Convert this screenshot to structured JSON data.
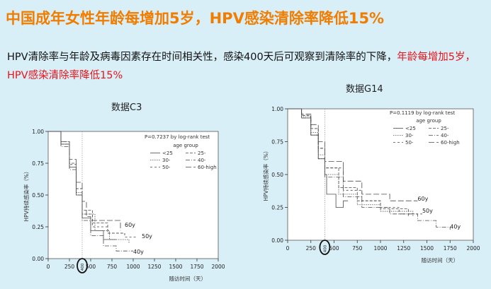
{
  "title": "中国成年女性年龄每增加5岁，HPV感染清除率降低15%",
  "paragraph": {
    "text": "HPV清除率与年龄及病毒因素存在时间相关性，感染400天后可观察到清除率的下降，",
    "highlight": "年龄每增加5岁，HPV感染清除率降低15%"
  },
  "colors": {
    "title": "#f07d00",
    "highlight": "#e8141a",
    "background": "#d9eff8",
    "plot_background": "#ffffff"
  },
  "chart_data": [
    {
      "type": "line",
      "title": "数据C3",
      "annotation": "P=0.7237 by log-rank test",
      "xlabel": "随访时间（天）",
      "ylabel": "HPV持续感染率（%）",
      "xlim": [
        0,
        2000
      ],
      "ylim": [
        0,
        1
      ],
      "xticks": [
        0,
        250,
        500,
        750,
        1000,
        1250,
        1500,
        1750,
        2000
      ],
      "yticks": [
        0.0,
        0.25,
        0.5,
        0.75,
        1.0
      ],
      "x_tick_labels": [
        "0",
        "250",
        "500",
        "750",
        "1000",
        "1250",
        "1500",
        "1750",
        "2000"
      ],
      "y_tick_labels": [
        "0.00",
        "0.25",
        "0.50",
        "0.75",
        "1.00"
      ],
      "marker_x": 400,
      "marker_label": "400",
      "legend": {
        "title": "age group",
        "position": "top-right",
        "entries": [
          "<25",
          "25-",
          "30-",
          "40-",
          "50-",
          "60-high"
        ]
      },
      "end_labels": [
        {
          "text": "60y",
          "x": 900,
          "y": 0.25
        },
        {
          "text": "50y",
          "x": 1100,
          "y": 0.16
        },
        {
          "text": "40y",
          "x": 1000,
          "y": 0.04
        }
      ],
      "series": [
        {
          "name": "<25",
          "dash": "",
          "x": [
            0,
            150,
            250,
            330,
            400,
            500,
            650,
            800
          ],
          "y": [
            1.0,
            0.9,
            0.72,
            0.5,
            0.32,
            0.22,
            0.15,
            0.15
          ]
        },
        {
          "name": "25-",
          "dash": "4,2",
          "x": [
            0,
            150,
            250,
            330,
            400,
            520,
            700,
            900
          ],
          "y": [
            1.0,
            0.92,
            0.75,
            0.55,
            0.38,
            0.28,
            0.2,
            0.19
          ]
        },
        {
          "name": "30-",
          "dash": "1.5,1.5",
          "x": [
            0,
            150,
            250,
            330,
            400,
            550,
            720,
            950
          ],
          "y": [
            1.0,
            0.9,
            0.72,
            0.52,
            0.35,
            0.22,
            0.15,
            0.12
          ]
        },
        {
          "name": "40-",
          "dash": "6,2,1,2",
          "x": [
            0,
            150,
            250,
            330,
            400,
            500,
            650,
            800,
            1000
          ],
          "y": [
            1.0,
            0.88,
            0.7,
            0.5,
            0.3,
            0.18,
            0.1,
            0.06,
            0.06
          ]
        },
        {
          "name": "50-",
          "dash": "3,3",
          "x": [
            0,
            150,
            250,
            330,
            400,
            520,
            700,
            900,
            1050
          ],
          "y": [
            1.0,
            0.9,
            0.74,
            0.55,
            0.35,
            0.25,
            0.2,
            0.17,
            0.17
          ]
        },
        {
          "name": "60-high",
          "dash": "8,3",
          "x": [
            0,
            150,
            250,
            330,
            400,
            450,
            500,
            800,
            850
          ],
          "y": [
            1.0,
            0.92,
            0.78,
            0.6,
            0.45,
            0.33,
            0.3,
            0.3,
            0.22
          ]
        }
      ]
    },
    {
      "type": "line",
      "title": "数据G14",
      "annotation": "P=0.1119 by log-rank test",
      "xlabel": "随访时间（天）",
      "ylabel": "HPV持续感染率（%）",
      "xlim": [
        0,
        2000
      ],
      "ylim": [
        0,
        1
      ],
      "xticks": [
        0,
        250,
        500,
        750,
        1000,
        1250,
        1500,
        1750,
        2000
      ],
      "yticks": [
        0.0,
        0.25,
        0.5,
        0.75,
        1.0
      ],
      "x_tick_labels": [
        "0",
        "250",
        "500",
        "750",
        "1000",
        "1250",
        "1500",
        "1750",
        "2000"
      ],
      "y_tick_labels": [
        "0.00",
        "0.25",
        "0.50",
        "0.75",
        "1.00"
      ],
      "marker_x": 400,
      "marker_label": "400",
      "legend": {
        "title": "age group",
        "position": "top-right",
        "entries": [
          "<25",
          "25-",
          "30-",
          "40-",
          "50-",
          "60-high"
        ]
      },
      "end_labels": [
        {
          "text": "60y",
          "x": 1400,
          "y": 0.3
        },
        {
          "text": "50y",
          "x": 1450,
          "y": 0.21
        },
        {
          "text": "40y",
          "x": 1750,
          "y": 0.09
        }
      ],
      "series": [
        {
          "name": "<25",
          "dash": "",
          "x": [
            0,
            150,
            250,
            330,
            400,
            420,
            520,
            600,
            650
          ],
          "y": [
            1.0,
            0.93,
            0.8,
            0.62,
            0.5,
            0.35,
            0.25,
            0.3,
            0.3
          ]
        },
        {
          "name": "25-",
          "dash": "4,2",
          "x": [
            0,
            150,
            250,
            330,
            400,
            550,
            750,
            1000,
            1300
          ],
          "y": [
            1.0,
            0.95,
            0.85,
            0.7,
            0.55,
            0.4,
            0.3,
            0.24,
            0.18
          ]
        },
        {
          "name": "30-",
          "dash": "1.5,1.5",
          "x": [
            0,
            150,
            250,
            330,
            400,
            550,
            750,
            1000,
            1350
          ],
          "y": [
            1.0,
            0.94,
            0.82,
            0.65,
            0.5,
            0.35,
            0.27,
            0.22,
            0.18
          ]
        },
        {
          "name": "40-",
          "dash": "6,2,1,2",
          "x": [
            0,
            150,
            250,
            330,
            400,
            600,
            800,
            1100,
            1400,
            1600,
            1750
          ],
          "y": [
            1.0,
            0.93,
            0.8,
            0.62,
            0.48,
            0.33,
            0.25,
            0.2,
            0.15,
            0.1,
            0.08
          ]
        },
        {
          "name": "50-",
          "dash": "3,3",
          "x": [
            0,
            150,
            250,
            330,
            400,
            600,
            800,
            1000,
            1200,
            1450
          ],
          "y": [
            1.0,
            0.95,
            0.85,
            0.7,
            0.55,
            0.38,
            0.3,
            0.25,
            0.2,
            0.2
          ]
        },
        {
          "name": "60-high",
          "dash": "8,3",
          "x": [
            0,
            150,
            250,
            330,
            400,
            600,
            800,
            1100,
            1350,
            1400
          ],
          "y": [
            1.0,
            0.96,
            0.88,
            0.75,
            0.6,
            0.45,
            0.35,
            0.3,
            0.3,
            0.3
          ]
        }
      ]
    }
  ]
}
